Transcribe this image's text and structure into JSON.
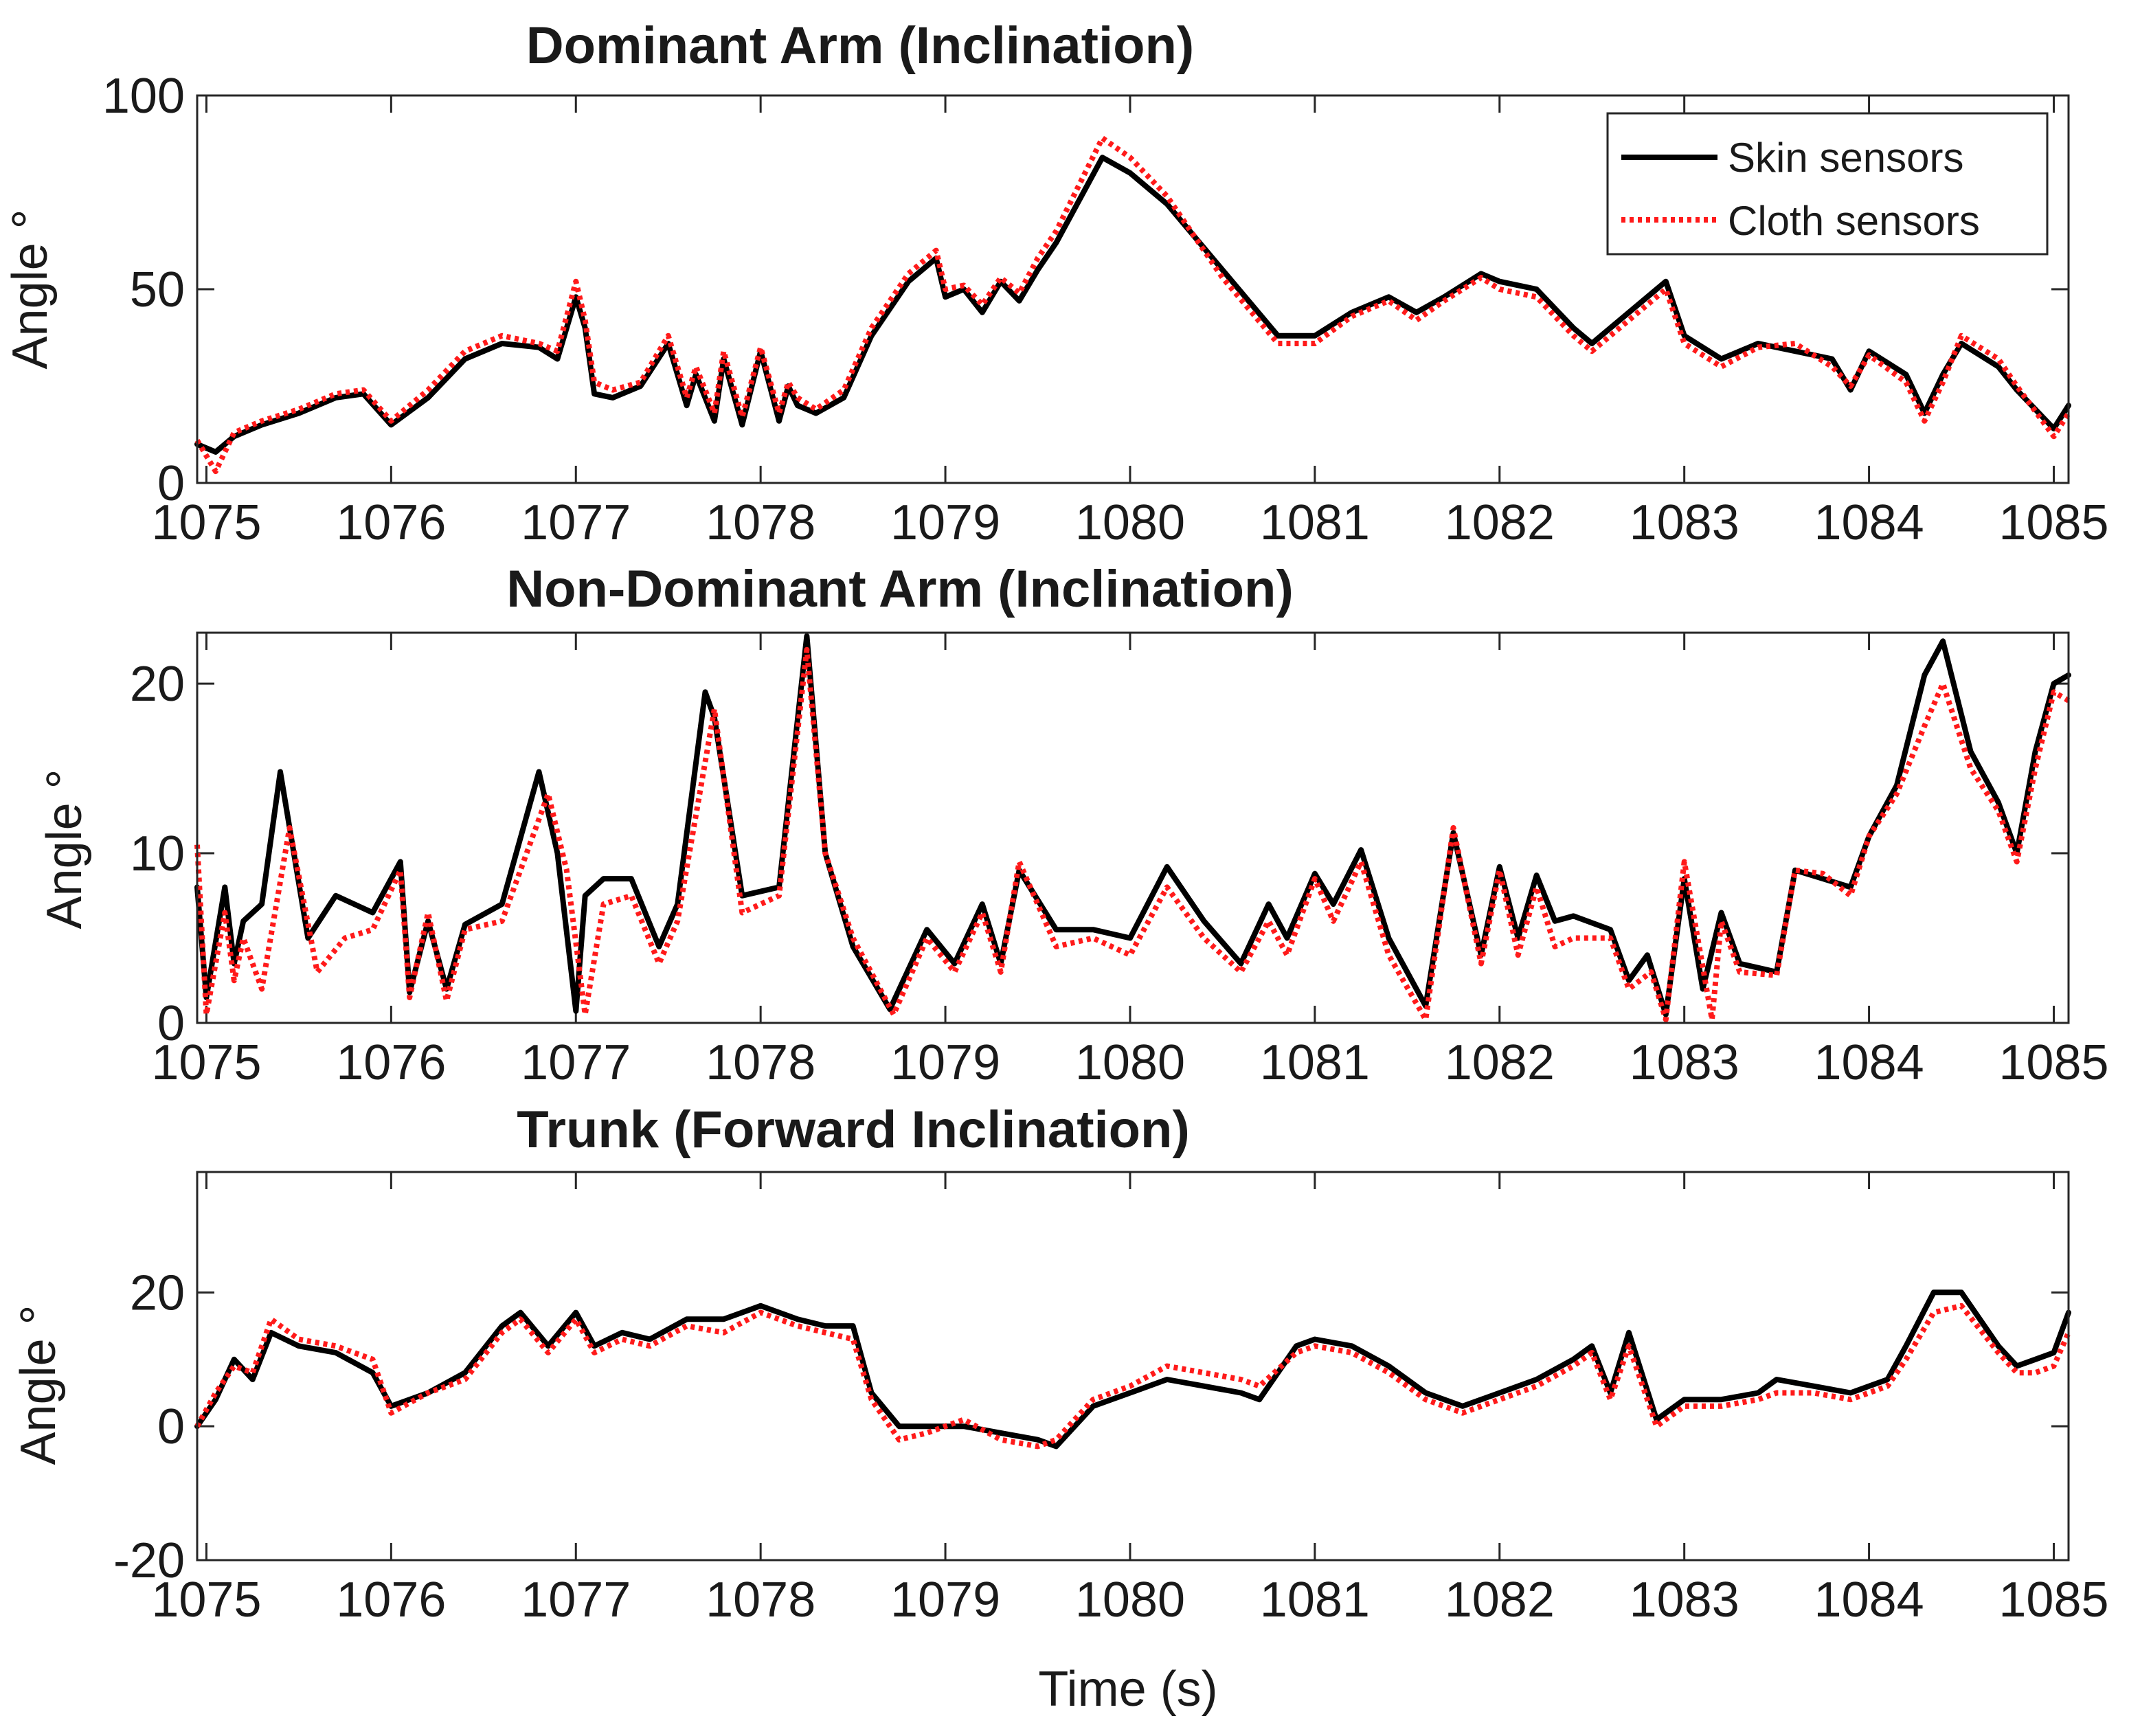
{
  "colors": {
    "skin": "#000000",
    "cloth": "#ff1a1a"
  },
  "legend": {
    "skin_label": "Skin sensors",
    "cloth_label": "Cloth sensors"
  },
  "shared_xlabel": "Time (s)",
  "chart_data": [
    {
      "type": "line",
      "title": "Dominant Arm (Inclination)",
      "xlabel": "",
      "ylabel": "Angle °",
      "xlim": [
        1074.95,
        1085.08
      ],
      "ylim": [
        0,
        100
      ],
      "xticks": [
        1075,
        1076,
        1077,
        1078,
        1079,
        1080,
        1081,
        1082,
        1083,
        1084,
        1085
      ],
      "yticks": [
        0,
        50,
        100
      ],
      "legend_position": "top-right",
      "series": [
        {
          "name": "Skin sensors",
          "x": [
            1074.95,
            1075.05,
            1075.15,
            1075.3,
            1075.5,
            1075.7,
            1075.85,
            1076.0,
            1076.2,
            1076.4,
            1076.6,
            1076.8,
            1076.9,
            1077.0,
            1077.05,
            1077.1,
            1077.2,
            1077.35,
            1077.5,
            1077.6,
            1077.65,
            1077.75,
            1077.8,
            1077.9,
            1078.0,
            1078.1,
            1078.15,
            1078.2,
            1078.3,
            1078.45,
            1078.6,
            1078.8,
            1078.95,
            1079.0,
            1079.1,
            1079.2,
            1079.3,
            1079.4,
            1079.5,
            1079.6,
            1079.85,
            1080.0,
            1080.2,
            1080.5,
            1080.8,
            1081.0,
            1081.2,
            1081.4,
            1081.55,
            1081.7,
            1081.9,
            1082.0,
            1082.2,
            1082.4,
            1082.5,
            1082.7,
            1082.9,
            1083.0,
            1083.2,
            1083.4,
            1083.6,
            1083.8,
            1083.9,
            1084.0,
            1084.2,
            1084.3,
            1084.4,
            1084.5,
            1084.7,
            1084.8,
            1085.0,
            1085.08
          ],
          "values": [
            10,
            8,
            12,
            15,
            18,
            22,
            23,
            15,
            22,
            32,
            36,
            35,
            32,
            48,
            40,
            23,
            22,
            25,
            36,
            20,
            28,
            16,
            32,
            15,
            34,
            16,
            25,
            20,
            18,
            22,
            38,
            52,
            58,
            48,
            50,
            44,
            52,
            47,
            55,
            62,
            84,
            80,
            72,
            55,
            38,
            38,
            44,
            48,
            44,
            48,
            54,
            52,
            50,
            40,
            36,
            44,
            52,
            38,
            32,
            36,
            34,
            32,
            24,
            34,
            28,
            18,
            28,
            36,
            30,
            24,
            14,
            20
          ]
        },
        {
          "name": "Cloth sensors",
          "x": [
            1074.95,
            1075.05,
            1075.15,
            1075.3,
            1075.5,
            1075.7,
            1075.85,
            1076.0,
            1076.2,
            1076.4,
            1076.6,
            1076.8,
            1076.9,
            1077.0,
            1077.05,
            1077.1,
            1077.2,
            1077.35,
            1077.5,
            1077.6,
            1077.65,
            1077.75,
            1077.8,
            1077.9,
            1078.0,
            1078.1,
            1078.15,
            1078.2,
            1078.3,
            1078.45,
            1078.6,
            1078.8,
            1078.95,
            1079.0,
            1079.1,
            1079.2,
            1079.3,
            1079.4,
            1079.5,
            1079.6,
            1079.85,
            1080.0,
            1080.2,
            1080.5,
            1080.8,
            1081.0,
            1081.2,
            1081.4,
            1081.55,
            1081.7,
            1081.9,
            1082.0,
            1082.2,
            1082.4,
            1082.5,
            1082.7,
            1082.9,
            1083.0,
            1083.2,
            1083.4,
            1083.6,
            1083.8,
            1083.9,
            1084.0,
            1084.2,
            1084.3,
            1084.4,
            1084.5,
            1084.7,
            1084.8,
            1085.0,
            1085.08
          ],
          "values": [
            11,
            3,
            13,
            16,
            19,
            23,
            24,
            16,
            24,
            34,
            38,
            36,
            34,
            52,
            42,
            26,
            24,
            26,
            38,
            22,
            30,
            18,
            34,
            17,
            35,
            18,
            26,
            22,
            19,
            24,
            40,
            54,
            60,
            50,
            51,
            46,
            53,
            49,
            58,
            65,
            89,
            84,
            74,
            53,
            36,
            36,
            43,
            47,
            42,
            47,
            53,
            50,
            48,
            38,
            34,
            42,
            50,
            36,
            30,
            35,
            36,
            30,
            25,
            33,
            26,
            16,
            26,
            38,
            32,
            25,
            12,
            18
          ]
        }
      ]
    },
    {
      "type": "line",
      "title": "Non-Dominant Arm (Inclination)",
      "xlabel": "",
      "ylabel": "Angle °",
      "xlim": [
        1074.95,
        1085.08
      ],
      "ylim": [
        0,
        23
      ],
      "xticks": [
        1075,
        1076,
        1077,
        1078,
        1079,
        1080,
        1081,
        1082,
        1083,
        1084,
        1085
      ],
      "yticks": [
        0,
        10,
        20
      ],
      "series": [
        {
          "name": "Skin sensors",
          "x": [
            1074.95,
            1075.0,
            1075.1,
            1075.15,
            1075.2,
            1075.3,
            1075.4,
            1075.55,
            1075.7,
            1075.9,
            1076.05,
            1076.1,
            1076.2,
            1076.3,
            1076.4,
            1076.6,
            1076.8,
            1076.9,
            1077.0,
            1077.05,
            1077.15,
            1077.3,
            1077.45,
            1077.55,
            1077.7,
            1077.75,
            1077.9,
            1078.1,
            1078.25,
            1078.35,
            1078.5,
            1078.7,
            1078.9,
            1079.05,
            1079.2,
            1079.3,
            1079.4,
            1079.6,
            1079.8,
            1080.0,
            1080.2,
            1080.4,
            1080.6,
            1080.75,
            1080.85,
            1081.0,
            1081.1,
            1081.25,
            1081.4,
            1081.6,
            1081.75,
            1081.9,
            1082.0,
            1082.1,
            1082.2,
            1082.3,
            1082.4,
            1082.6,
            1082.7,
            1082.8,
            1082.9,
            1083.0,
            1083.1,
            1083.2,
            1083.3,
            1083.5,
            1083.6,
            1083.75,
            1083.9,
            1084.0,
            1084.15,
            1084.3,
            1084.4,
            1084.55,
            1084.7,
            1084.8,
            1084.9,
            1085.0,
            1085.08
          ],
          "values": [
            8,
            1.5,
            8,
            3.5,
            6,
            7,
            14.8,
            5,
            7.5,
            6.5,
            9.5,
            1.8,
            6,
            2,
            5.8,
            7,
            14.8,
            10,
            0.7,
            7.5,
            8.5,
            8.5,
            4.5,
            7,
            19.5,
            18,
            7.5,
            8,
            22.8,
            10,
            4.5,
            0.8,
            5.5,
            3.5,
            7,
            3.5,
            9,
            5.5,
            5.5,
            5,
            9.2,
            6,
            3.5,
            7,
            5,
            8.8,
            7,
            10.2,
            5,
            1,
            11.2,
            4,
            9.2,
            5,
            8.7,
            6,
            6.3,
            5.5,
            2.5,
            4,
            0.5,
            8.5,
            2,
            6.5,
            3.5,
            3,
            9,
            8.5,
            8,
            11,
            14,
            20.5,
            22.5,
            16,
            13,
            10,
            16,
            20,
            20.5
          ]
        },
        {
          "name": "Cloth sensors",
          "x": [
            1074.95,
            1075.0,
            1075.1,
            1075.15,
            1075.2,
            1075.3,
            1075.45,
            1075.6,
            1075.75,
            1075.9,
            1076.05,
            1076.1,
            1076.2,
            1076.3,
            1076.4,
            1076.6,
            1076.85,
            1076.95,
            1077.05,
            1077.15,
            1077.3,
            1077.45,
            1077.55,
            1077.75,
            1077.9,
            1078.1,
            1078.25,
            1078.35,
            1078.5,
            1078.72,
            1078.9,
            1079.05,
            1079.2,
            1079.3,
            1079.4,
            1079.6,
            1079.8,
            1080.0,
            1080.2,
            1080.4,
            1080.6,
            1080.75,
            1080.85,
            1081.0,
            1081.1,
            1081.25,
            1081.4,
            1081.6,
            1081.75,
            1081.9,
            1082.0,
            1082.1,
            1082.2,
            1082.3,
            1082.4,
            1082.6,
            1082.7,
            1082.82,
            1082.9,
            1083.0,
            1083.15,
            1083.2,
            1083.3,
            1083.5,
            1083.6,
            1083.75,
            1083.9,
            1084.0,
            1084.15,
            1084.3,
            1084.4,
            1084.55,
            1084.7,
            1084.8,
            1084.9,
            1085.0,
            1085.08
          ],
          "values": [
            10.5,
            0.5,
            6.5,
            2.5,
            5,
            2,
            11.5,
            3,
            5,
            5.5,
            9,
            1.5,
            6.5,
            1.3,
            5.5,
            6,
            13.5,
            9,
            0.5,
            7,
            7.5,
            3.5,
            6,
            18.5,
            6.5,
            7.5,
            22,
            10,
            5,
            0.5,
            5,
            3,
            6.5,
            3,
            9.5,
            4.5,
            5,
            4,
            8,
            5,
            3,
            6,
            4,
            8.5,
            6,
            9.5,
            4,
            0.2,
            11.5,
            3.5,
            9,
            4,
            8,
            4.5,
            5,
            5,
            2,
            3,
            0.2,
            9.5,
            0.2,
            6,
            3,
            2.8,
            9,
            8.8,
            7.5,
            11,
            13.5,
            17.5,
            20,
            15,
            12.5,
            9.5,
            15,
            19.5,
            19
          ]
        }
      ]
    },
    {
      "type": "line",
      "title": "Trunk (Forward Inclination)",
      "xlabel": "Time (s)",
      "ylabel": "Angle °",
      "xlim": [
        1074.95,
        1085.08
      ],
      "ylim": [
        -20,
        38
      ],
      "xticks": [
        1075,
        1076,
        1077,
        1078,
        1079,
        1080,
        1081,
        1082,
        1083,
        1084,
        1085
      ],
      "yticks": [
        -20,
        0,
        20
      ],
      "series": [
        {
          "name": "Skin sensors",
          "x": [
            1074.95,
            1075.05,
            1075.15,
            1075.25,
            1075.35,
            1075.5,
            1075.7,
            1075.9,
            1076.0,
            1076.2,
            1076.4,
            1076.6,
            1076.7,
            1076.85,
            1077.0,
            1077.1,
            1077.25,
            1077.4,
            1077.6,
            1077.8,
            1078.0,
            1078.2,
            1078.35,
            1078.5,
            1078.6,
            1078.75,
            1078.9,
            1079.1,
            1079.3,
            1079.5,
            1079.6,
            1079.8,
            1080.0,
            1080.2,
            1080.4,
            1080.6,
            1080.7,
            1080.9,
            1081.0,
            1081.2,
            1081.4,
            1081.6,
            1081.8,
            1082.0,
            1082.2,
            1082.4,
            1082.5,
            1082.6,
            1082.7,
            1082.85,
            1083.0,
            1083.2,
            1083.4,
            1083.5,
            1083.7,
            1083.9,
            1084.1,
            1084.2,
            1084.35,
            1084.5,
            1084.7,
            1084.8,
            1084.9,
            1085.0,
            1085.08
          ],
          "values": [
            0,
            4,
            10,
            7,
            14,
            12,
            11,
            8,
            3,
            5,
            8,
            15,
            17,
            12,
            17,
            12,
            14,
            13,
            16,
            16,
            18,
            16,
            15,
            15,
            5,
            0,
            0,
            0,
            -1,
            -2,
            -3,
            3,
            5,
            7,
            6,
            5,
            4,
            12,
            13,
            12,
            9,
            5,
            3,
            5,
            7,
            10,
            12,
            5,
            14,
            1,
            4,
            4,
            5,
            7,
            6,
            5,
            7,
            12,
            20,
            20,
            12,
            9,
            10,
            11,
            17
          ]
        },
        {
          "name": "Cloth sensors",
          "x": [
            1074.95,
            1075.05,
            1075.15,
            1075.25,
            1075.35,
            1075.5,
            1075.7,
            1075.9,
            1076.0,
            1076.2,
            1076.4,
            1076.6,
            1076.7,
            1076.85,
            1077.0,
            1077.1,
            1077.25,
            1077.4,
            1077.6,
            1077.8,
            1078.0,
            1078.2,
            1078.35,
            1078.5,
            1078.6,
            1078.75,
            1078.9,
            1079.1,
            1079.3,
            1079.5,
            1079.6,
            1079.8,
            1080.0,
            1080.2,
            1080.4,
            1080.6,
            1080.7,
            1080.9,
            1081.0,
            1081.2,
            1081.4,
            1081.6,
            1081.8,
            1082.0,
            1082.2,
            1082.4,
            1082.5,
            1082.6,
            1082.7,
            1082.85,
            1083.0,
            1083.2,
            1083.4,
            1083.5,
            1083.7,
            1083.9,
            1084.1,
            1084.2,
            1084.35,
            1084.5,
            1084.7,
            1084.8,
            1084.9,
            1085.0,
            1085.08
          ],
          "values": [
            0,
            5,
            9,
            8,
            16,
            13,
            12,
            10,
            2,
            5,
            7,
            14,
            16,
            11,
            16,
            11,
            13,
            12,
            15,
            14,
            17,
            15,
            14,
            13,
            4,
            -2,
            -1,
            1,
            -2,
            -3,
            -2,
            4,
            6,
            9,
            8,
            7,
            6,
            11,
            12,
            11,
            8,
            4,
            2,
            4,
            6,
            9,
            11,
            4,
            12,
            0,
            3,
            3,
            4,
            5,
            5,
            4,
            6,
            10,
            17,
            18,
            11,
            8,
            8,
            9,
            14
          ]
        }
      ]
    }
  ]
}
